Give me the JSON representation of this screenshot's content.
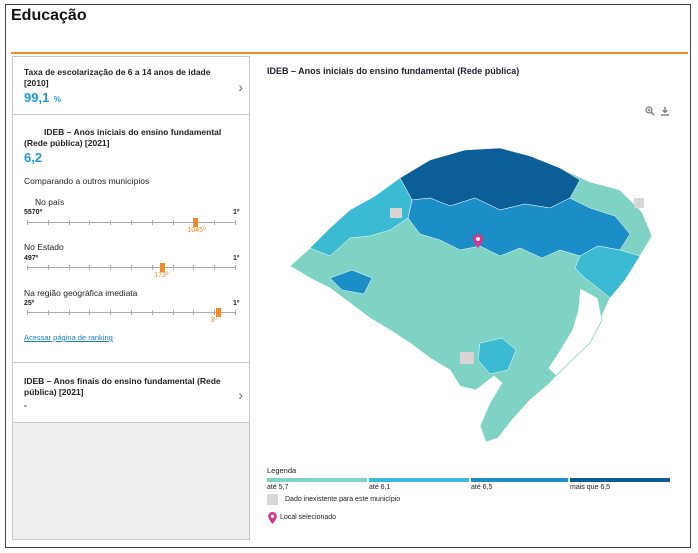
{
  "page": {
    "title": "Educação"
  },
  "left": {
    "card1": {
      "title": "Taxa de escolarização de 6 a 14 anos de idade",
      "year": "[2010]",
      "value": "99,1",
      "unit": "%"
    },
    "card2": {
      "title": "IDEB – Anos iniciais do ensino fundamental (Rede pública) [2021]",
      "value": "6,2",
      "comparing": "Comparando a outros municípios",
      "rankings": [
        {
          "label": "No país",
          "total": "5570º",
          "first": "1º",
          "position": "1045º",
          "fraction": 0.81
        },
        {
          "label": "No Estado",
          "total": "497º",
          "first": "1º",
          "position": "173º",
          "fraction": 0.65
        },
        {
          "label": "Na região geográfica imediata",
          "total": "25º",
          "first": "1º",
          "position": "3º",
          "fraction": 0.92
        }
      ],
      "link": "Acessar página de ranking"
    },
    "card3": {
      "title": "IDEB – Anos finais do ensino fundamental (Rede pública) [2021]",
      "value": "-"
    }
  },
  "right": {
    "title": "IDEB – Anos iniciais do ensino fundamental (Rede pública)",
    "zoom_icon": "zoom-icon",
    "download_icon": "download-icon",
    "legend": {
      "title": "Legenda",
      "classes": [
        {
          "label": "até 5,7",
          "color": "#7fd3c4"
        },
        {
          "label": "até 6,1",
          "color": "#3bbad3"
        },
        {
          "label": "até 6,5",
          "color": "#1b8dc7"
        },
        {
          "label": "mais que 6,5",
          "color": "#0b5e97"
        }
      ],
      "na": "Dado inexistente para este município",
      "selected": "Local selecionado"
    }
  }
}
